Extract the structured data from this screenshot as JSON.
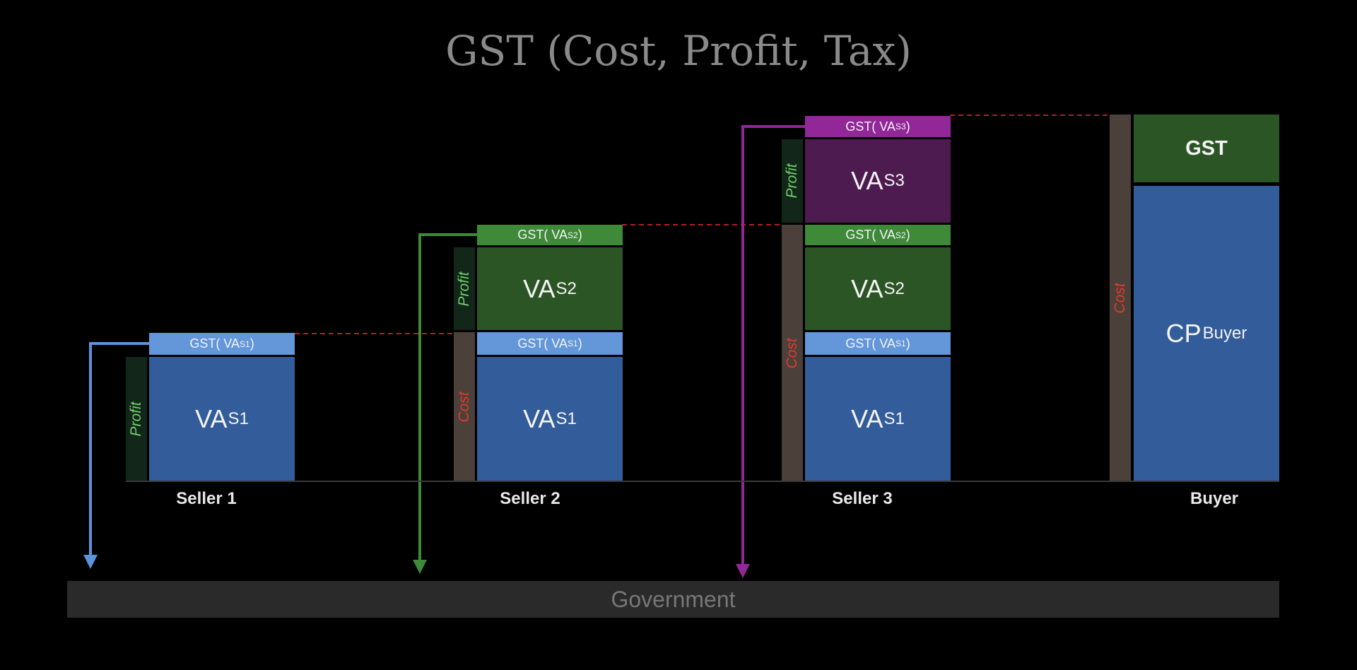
{
  "title": "GST (Cost, Profit, Tax)",
  "sellers": [
    {
      "label": "Seller 1",
      "gst": {
        "prefix": "GST( VA",
        "sub": "S1",
        "suffix": " )"
      },
      "va": {
        "main": "VA",
        "sub": "S1"
      },
      "profit_label": "Profit"
    },
    {
      "label": "Seller 2",
      "gst_top": {
        "prefix": "GST( VA",
        "sub": "S2",
        "suffix": " )"
      },
      "va_top": {
        "main": "VA",
        "sub": "S2"
      },
      "gst_bottom": {
        "prefix": "GST( VA",
        "sub": "S1",
        "suffix": " )"
      },
      "va_bottom": {
        "main": "VA",
        "sub": "S1"
      },
      "profit_label": "Profit",
      "cost_label": "Cost"
    },
    {
      "label": "Seller 3",
      "gst_s3": {
        "prefix": "GST( VA",
        "sub": "S3",
        "suffix": " )"
      },
      "va_s3": {
        "main": "VA",
        "sub": "S3"
      },
      "gst_s2": {
        "prefix": "GST( VA",
        "sub": "S2",
        "suffix": " )"
      },
      "va_s2": {
        "main": "VA",
        "sub": "S2"
      },
      "gst_s1": {
        "prefix": "GST( VA",
        "sub": "S1",
        "suffix": " )"
      },
      "va_s1": {
        "main": "VA",
        "sub": "S1"
      },
      "profit_label": "Profit",
      "cost_label": "Cost"
    }
  ],
  "buyer": {
    "label": "Buyer",
    "gst_label": "GST",
    "cp": {
      "main": "CP",
      "sub": "Buyer"
    },
    "cost_label": "Cost"
  },
  "government": "Government",
  "colors": {
    "seller1_arrow": "#5b94dc",
    "seller2_arrow": "#3e8a39",
    "seller3_arrow": "#922797",
    "dashed_line": "#b3201c"
  }
}
